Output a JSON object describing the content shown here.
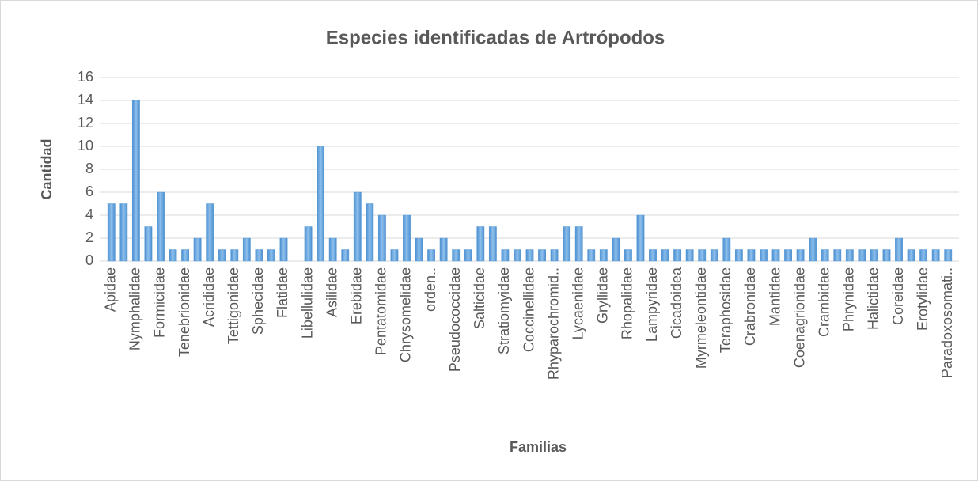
{
  "chart_data": {
    "type": "bar",
    "title": "Especies identificadas de Artrópodos",
    "x_label": "Familias",
    "y_label": "Cantidad",
    "categories": [
      "Apidae",
      null,
      "Nymphalidae",
      null,
      "Formicidae",
      null,
      "Tenebrionidae",
      null,
      "Acrididae",
      null,
      "Tettigonidae",
      null,
      "Sphecidae",
      null,
      "Flatidae",
      null,
      "Libellulidae",
      null,
      "Asilidae",
      null,
      "Erebidae",
      null,
      "Pentatomidae",
      null,
      "Chrysomelidae",
      null,
      "orden..",
      null,
      "Pseudococcidae",
      null,
      "Salticidae",
      null,
      "Stratiomyidae",
      null,
      "Coccinellidae",
      null,
      "Rhyparochromid..",
      null,
      "Lycaenidae",
      null,
      "Gryllidae",
      null,
      "Rhopalidae",
      null,
      "Lampyridae",
      null,
      "Cicadoidea",
      null,
      "Myrmeleontidae",
      null,
      "Teraphosidae",
      null,
      "Crabronidae",
      null,
      "Mantidae",
      null,
      "Coenagrionidae",
      null,
      "Crambidae",
      null,
      "Phrynidae",
      null,
      "Halictidae",
      null,
      "Coreidae",
      null,
      "Erotylidae",
      null,
      "Paradoxosomati.."
    ],
    "values": [
      5,
      5,
      14,
      3,
      6,
      1,
      1,
      2,
      5,
      1,
      1,
      2,
      1,
      1,
      2,
      0,
      3,
      10,
      2,
      1,
      6,
      5,
      4,
      1,
      4,
      2,
      1,
      2,
      1,
      1,
      3,
      3,
      1,
      1,
      1,
      1,
      1,
      3,
      3,
      1,
      1,
      2,
      1,
      4,
      1,
      1,
      1,
      1,
      1,
      1,
      2,
      1,
      1,
      1,
      1,
      1,
      1,
      2,
      1,
      1,
      1,
      1,
      1,
      1,
      2,
      1,
      1,
      1,
      1
    ],
    "color": "#5b9bd5",
    "ylim": [
      0,
      16
    ],
    "yticks": [
      0,
      2,
      4,
      6,
      8,
      10,
      12,
      14,
      16
    ],
    "grid": true
  }
}
